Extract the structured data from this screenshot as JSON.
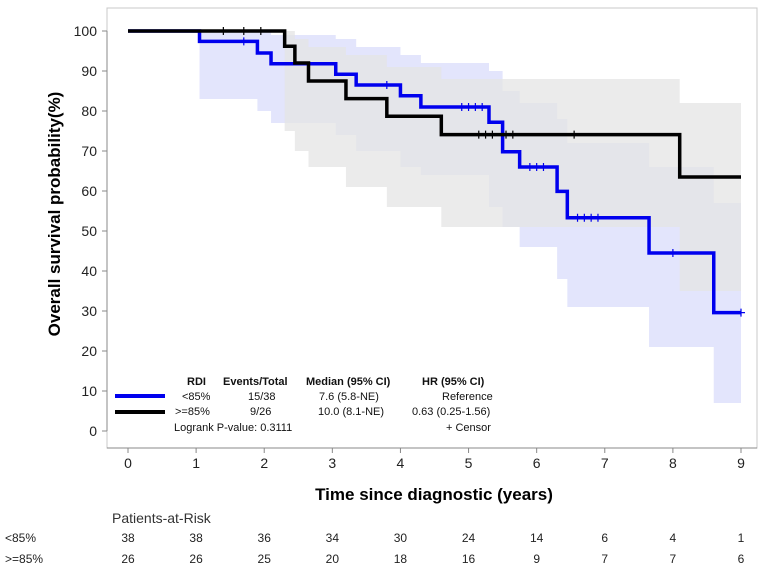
{
  "chart_data": {
    "type": "line",
    "subtype": "kaplan-meier",
    "title": "",
    "xlabel": "Time since diagnostic (years)",
    "ylabel": "Overall survival probability(%)",
    "xlim": [
      0,
      9
    ],
    "ylim": [
      0,
      100
    ],
    "xticks": [
      0,
      1,
      2,
      3,
      4,
      5,
      6,
      7,
      8,
      9
    ],
    "yticks": [
      0,
      10,
      20,
      30,
      40,
      50,
      60,
      70,
      80,
      90,
      100
    ],
    "grid": false,
    "legend_placement": "bottom-left",
    "series": [
      {
        "name": "<85%",
        "color": "#0000ee",
        "band_color": "#dadcfb",
        "steps": [
          [
            0,
            100
          ],
          [
            1.05,
            97.4
          ],
          [
            1.9,
            94.5
          ],
          [
            2.1,
            91.8
          ],
          [
            2.6,
            91.8
          ],
          [
            3.05,
            89.2
          ],
          [
            3.35,
            86.5
          ],
          [
            4.0,
            83.8
          ],
          [
            4.3,
            81.0
          ],
          [
            5.3,
            77.2
          ],
          [
            5.5,
            73.6
          ],
          [
            5.5,
            69.8
          ],
          [
            5.75,
            66.0
          ],
          [
            6.3,
            59.9
          ],
          [
            6.45,
            53.3
          ],
          [
            7.65,
            44.5
          ],
          [
            8.6,
            29.6
          ],
          [
            9.0,
            29.6
          ]
        ],
        "ci_steps": [
          [
            0,
            100,
            100
          ],
          [
            1.05,
            100,
            83
          ],
          [
            1.9,
            100,
            80
          ],
          [
            2.1,
            99,
            77
          ],
          [
            3.05,
            98,
            74
          ],
          [
            3.35,
            96,
            70
          ],
          [
            4.0,
            94,
            66
          ],
          [
            4.3,
            92,
            64
          ],
          [
            5.3,
            90,
            56
          ],
          [
            5.5,
            85,
            51
          ],
          [
            5.75,
            82,
            46
          ],
          [
            6.3,
            78,
            38
          ],
          [
            6.45,
            72,
            31
          ],
          [
            7.65,
            66,
            21
          ],
          [
            8.6,
            57,
            7
          ],
          [
            9.0,
            57,
            7
          ]
        ],
        "censor_times": [
          1.7,
          3.8,
          4.9,
          5.0,
          5.1,
          5.2,
          5.9,
          6.0,
          6.1,
          6.6,
          6.7,
          6.8,
          6.9,
          8.0,
          9.0
        ]
      },
      {
        "name": ">=85%",
        "color": "#000000",
        "band_color": "#e4e4e4",
        "steps": [
          [
            0,
            100
          ],
          [
            2.3,
            96.2
          ],
          [
            2.45,
            92.0
          ],
          [
            2.65,
            87.5
          ],
          [
            3.2,
            83.1
          ],
          [
            3.8,
            78.7
          ],
          [
            4.6,
            74.1
          ],
          [
            8.1,
            63.5
          ],
          [
            9.0,
            63.5
          ]
        ],
        "ci_steps": [
          [
            0,
            100,
            100
          ],
          [
            2.3,
            100,
            75
          ],
          [
            2.45,
            98,
            70
          ],
          [
            2.65,
            96,
            66
          ],
          [
            3.2,
            94,
            61
          ],
          [
            3.8,
            91,
            56
          ],
          [
            4.6,
            88,
            51
          ],
          [
            8.1,
            82,
            35
          ],
          [
            9.0,
            82,
            35
          ]
        ],
        "censor_times": [
          1.4,
          1.7,
          1.95,
          5.15,
          5.25,
          5.35,
          5.55,
          5.65,
          6.55
        ]
      }
    ],
    "legend": {
      "headers": [
        "RDI",
        "Events/Total",
        "Median (95% CI)",
        "HR (95% CI)"
      ],
      "rows": [
        {
          "rdi": "<85%",
          "events": "15/38",
          "median": "7.6 (5.8-NE)",
          "hr": "Reference"
        },
        {
          "rdi": ">=85%",
          "events": "9/26",
          "median": "10.0 (8.1-NE)",
          "hr": "0.63 (0.25-1.56)"
        }
      ],
      "pvalue": "Logrank P-value: 0.3111",
      "censor_label": "+ Censor"
    },
    "risk_table": {
      "title": "Patients-at-Risk",
      "times": [
        0,
        1,
        2,
        3,
        4,
        5,
        6,
        7,
        8,
        9
      ],
      "rows": [
        {
          "label": "<85%",
          "values": [
            38,
            38,
            36,
            34,
            30,
            24,
            14,
            6,
            4,
            1
          ]
        },
        {
          "label": ">=85%",
          "values": [
            26,
            26,
            25,
            20,
            18,
            16,
            9,
            7,
            7,
            6
          ]
        }
      ]
    }
  }
}
